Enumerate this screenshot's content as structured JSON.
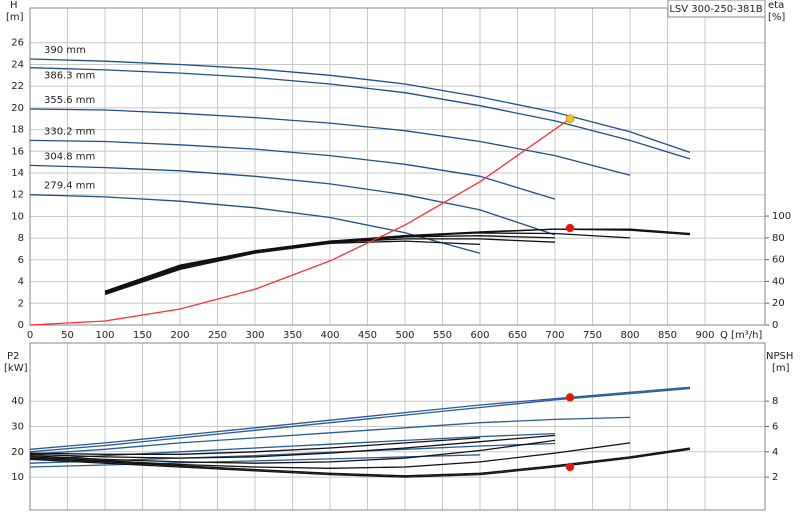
{
  "chart_data": [
    {
      "type": "line",
      "title": "LSV 300-250-381B",
      "xlabel": "Q [m³/h]",
      "ylabel": "H",
      "yunit": "[m]",
      "y2label": "eta",
      "y2unit": "[%]",
      "x": [
        0,
        100,
        200,
        300,
        400,
        500,
        600,
        700,
        800,
        880
      ],
      "xlim": [
        0,
        980
      ],
      "xticks": [
        0,
        50,
        100,
        150,
        200,
        250,
        300,
        350,
        400,
        450,
        500,
        550,
        600,
        650,
        700,
        750,
        800,
        850,
        900
      ],
      "ylim": [
        0,
        29.2
      ],
      "yticks": [
        0,
        2,
        4,
        6,
        8,
        10,
        12,
        14,
        16,
        18,
        20,
        22,
        24,
        26
      ],
      "y2lim": [
        0,
        291
      ],
      "y2ticks": [
        0,
        20,
        40,
        60,
        80,
        100
      ],
      "grid": true,
      "series": [
        {
          "name": "390 mm",
          "color": "#1f4e8c",
          "values": [
            24.5,
            24.3,
            24.0,
            23.6,
            23.0,
            22.2,
            21.0,
            19.6,
            17.8,
            15.9
          ]
        },
        {
          "name": "386.3 mm",
          "color": "#1f4e8c",
          "values": [
            23.7,
            23.5,
            23.2,
            22.8,
            22.2,
            21.4,
            20.2,
            18.8,
            17.0,
            15.3
          ]
        },
        {
          "name": "355.6 mm",
          "color": "#1f4e8c",
          "values": [
            19.9,
            19.8,
            19.5,
            19.1,
            18.6,
            17.9,
            16.9,
            15.6,
            13.8,
            null
          ]
        },
        {
          "name": "330.2 mm",
          "color": "#1f4e8c",
          "values": [
            17.0,
            16.9,
            16.6,
            16.2,
            15.6,
            14.8,
            13.7,
            11.6,
            null,
            null
          ]
        },
        {
          "name": "304.8 mm",
          "color": "#1f4e8c",
          "values": [
            14.7,
            14.5,
            14.2,
            13.7,
            13.0,
            12.0,
            10.6,
            8.3,
            null,
            null
          ]
        },
        {
          "name": "279.4 mm",
          "color": "#1f4e8c",
          "values": [
            12.0,
            11.8,
            11.4,
            10.8,
            9.9,
            8.5,
            6.6,
            null,
            null,
            null
          ]
        },
        {
          "axis": "y2",
          "color": "#111111",
          "values": [
            null,
            29,
            52,
            67,
            76,
            82,
            85.5,
            88,
            87,
            83
          ]
        },
        {
          "axis": "y2",
          "color": "#111111",
          "values": [
            null,
            28,
            51,
            66,
            75,
            81,
            85,
            88,
            88,
            84
          ]
        },
        {
          "axis": "y2",
          "color": "#111111",
          "values": [
            null,
            30,
            53,
            68,
            77,
            82,
            84.5,
            84,
            80,
            null
          ]
        },
        {
          "axis": "y2",
          "color": "#111111",
          "values": [
            null,
            30,
            54,
            68,
            77,
            81,
            82,
            80,
            null,
            null
          ]
        },
        {
          "axis": "y2",
          "color": "#111111",
          "values": [
            null,
            31,
            54,
            68,
            76,
            79,
            79,
            76,
            null,
            null
          ]
        },
        {
          "axis": "y2",
          "color": "#111111",
          "values": [
            null,
            31,
            55,
            68,
            75,
            77,
            74,
            null,
            null,
            null
          ]
        },
        {
          "color": "#ff3030",
          "x": [
            0,
            100,
            200,
            300,
            400,
            500,
            600,
            720
          ],
          "values": [
            0,
            0.37,
            1.47,
            3.3,
            5.9,
            9.2,
            13.2,
            19.0
          ]
        }
      ],
      "points": [
        {
          "x": 720,
          "y": 19.0,
          "color": "#f5c518"
        },
        {
          "x": 720,
          "y": 89,
          "axis": "y2",
          "color": "#ee1111"
        }
      ]
    },
    {
      "type": "line",
      "ylabel": "P2",
      "yunit": "[kW]",
      "y2label": "NPSH",
      "y2unit": "[m]",
      "x": [
        0,
        100,
        200,
        300,
        400,
        500,
        600,
        700,
        800,
        880
      ],
      "xlim": [
        0,
        980
      ],
      "xticks": [
        0,
        50,
        100,
        150,
        200,
        250,
        300,
        350,
        400,
        450,
        500,
        550,
        600,
        650,
        700,
        750,
        800,
        850,
        900
      ],
      "xtick_labels": false,
      "ylim": [
        -3,
        63
      ],
      "yticks": [
        10,
        20,
        30,
        40
      ],
      "y2lim": [
        -0.6,
        12.6
      ],
      "y2ticks": [
        2,
        4,
        6,
        8
      ],
      "grid": true,
      "series": [
        {
          "color": "#2a5a9a",
          "values": [
            21,
            23.5,
            26.5,
            29.5,
            32.5,
            35.5,
            38.5,
            41,
            43.5,
            45.5
          ]
        },
        {
          "color": "#2a5a9a",
          "values": [
            20,
            22.5,
            25.5,
            28.5,
            31.5,
            34.5,
            37.5,
            40.5,
            43,
            45
          ]
        },
        {
          "color": "#2a5a9a",
          "values": [
            19,
            21,
            23.5,
            25.5,
            27.5,
            29.5,
            31.5,
            32.8,
            33.6,
            null
          ]
        },
        {
          "color": "#2a5a9a",
          "values": [
            17,
            18.5,
            20,
            21.5,
            23,
            24.5,
            26,
            27.2,
            null,
            null
          ]
        },
        {
          "color": "#2a5a9a",
          "values": [
            15.5,
            16.5,
            17.5,
            18.5,
            19.8,
            21,
            22.3,
            23.3,
            null,
            null
          ]
        },
        {
          "color": "#2a5a9a",
          "values": [
            14,
            14.8,
            15.6,
            16.4,
            17.2,
            18,
            18.8,
            null,
            null,
            null
          ]
        },
        {
          "axis": "y2",
          "color": "#111111",
          "values": [
            3.5,
            3.2,
            2.9,
            2.6,
            2.3,
            2.1,
            2.3,
            2.9,
            3.6,
            4.3
          ]
        },
        {
          "axis": "y2",
          "color": "#111111",
          "values": [
            3.4,
            3.1,
            2.8,
            2.5,
            2.2,
            2.0,
            2.2,
            2.8,
            3.5,
            4.2
          ]
        },
        {
          "axis": "y2",
          "color": "#111111",
          "values": [
            3.6,
            3.3,
            3.0,
            2.8,
            2.7,
            2.8,
            3.2,
            3.9,
            4.7,
            null
          ]
        },
        {
          "axis": "y2",
          "color": "#111111",
          "values": [
            3.7,
            3.4,
            3.2,
            3.1,
            3.2,
            3.5,
            4.1,
            4.9,
            null,
            null
          ]
        },
        {
          "axis": "y2",
          "color": "#111111",
          "values": [
            3.8,
            3.6,
            3.5,
            3.6,
            3.9,
            4.3,
            4.8,
            5.3,
            null,
            null
          ]
        },
        {
          "axis": "y2",
          "color": "#111111",
          "values": [
            3.9,
            3.8,
            3.8,
            4.0,
            4.3,
            4.7,
            5.1,
            null,
            null,
            null
          ]
        }
      ],
      "points": [
        {
          "x": 720,
          "y": 41.5,
          "color": "#ee1111"
        },
        {
          "x": 720,
          "y": 2.8,
          "axis": "y2",
          "color": "#ee1111"
        }
      ]
    }
  ]
}
